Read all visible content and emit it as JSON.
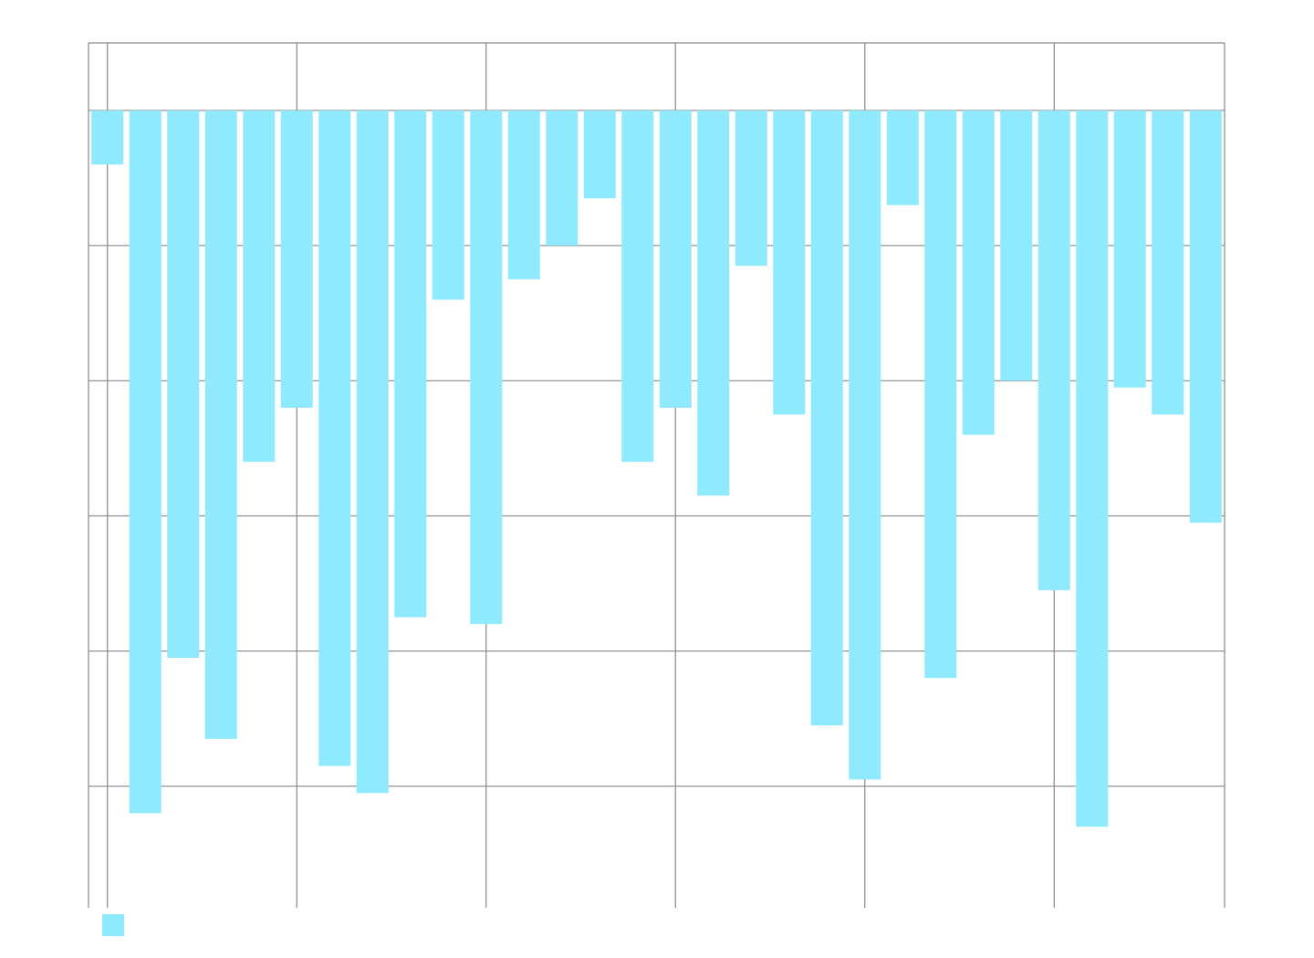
{
  "chart_data": {
    "type": "bar",
    "orientation": "inverted",
    "categories": [
      null,
      null,
      null,
      null,
      null,
      null,
      null,
      null,
      null,
      null,
      null,
      null,
      null,
      null,
      null,
      null,
      null,
      null,
      null,
      null,
      null,
      null,
      null,
      null,
      null,
      null,
      null,
      null,
      null,
      null
    ],
    "values": [
      0.4,
      5.2,
      4.05,
      4.65,
      2.6,
      2.2,
      4.85,
      5.05,
      3.75,
      1.4,
      3.8,
      1.25,
      1.0,
      0.65,
      2.6,
      2.2,
      2.85,
      1.15,
      2.25,
      4.55,
      4.95,
      0.7,
      4.2,
      2.4,
      2.0,
      3.55,
      5.3,
      2.05,
      2.25,
      3.05
    ],
    "color": "#8eeafc",
    "ylim": [
      -0.5,
      5.9
    ],
    "yticks": [
      0,
      1,
      2,
      3,
      4,
      5
    ],
    "grid": true
  }
}
